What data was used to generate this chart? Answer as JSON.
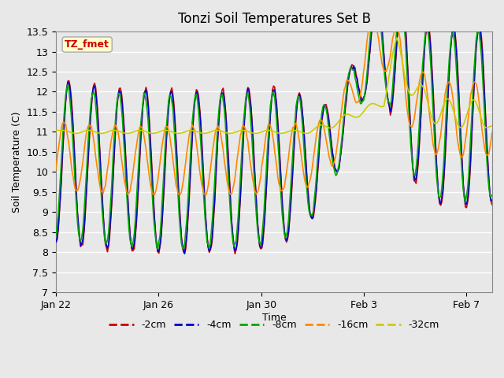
{
  "title": "Tonzi Soil Temperatures Set B",
  "xlabel": "Time",
  "ylabel": "Soil Temperature (C)",
  "ylim": [
    7.0,
    13.5
  ],
  "yticks": [
    7.0,
    7.5,
    8.0,
    8.5,
    9.0,
    9.5,
    10.0,
    10.5,
    11.0,
    11.5,
    12.0,
    12.5,
    13.0,
    13.5
  ],
  "xtick_pos": [
    0,
    4,
    8,
    12,
    16
  ],
  "xtick_labels": [
    "Jan 22",
    "Jan 26",
    "Jan 30",
    "Feb 3",
    "Feb 7"
  ],
  "line_colors": {
    "-2cm": "#cc0000",
    "-4cm": "#0000cc",
    "-8cm": "#00aa00",
    "-16cm": "#ff8800",
    "-32cm": "#cccc00"
  },
  "annotation_text": "TZ_fmet",
  "annotation_box_color": "#ffffcc",
  "annotation_text_color": "#cc0000",
  "bg_color": "#e8e8e8",
  "grid_color": "#ffffff"
}
